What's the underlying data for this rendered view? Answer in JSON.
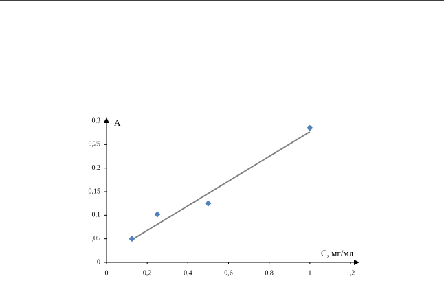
{
  "chart_data": {
    "type": "scatter",
    "x_label": "С, мг/мл",
    "y_label": "А",
    "series": [
      {
        "color": "#4f81bd",
        "x": [
          0.125,
          0.25,
          0.5,
          1
        ],
        "values": [
          0.05,
          0.102,
          0.125,
          0.285
        ]
      }
    ],
    "trendline": {
      "color": "#808080",
      "x": [
        0.125,
        1
      ],
      "values": [
        0.048,
        0.277
      ]
    },
    "xlim": [
      0,
      1.2
    ],
    "ylim": [
      0,
      0.3
    ],
    "xticks": [
      0,
      {
        "value": 0.2,
        "label": "0,2"
      },
      {
        "value": 0.4,
        "label": "0,4"
      },
      {
        "value": 0.6,
        "label": "0,6"
      },
      {
        "value": 0.8,
        "label": "0,8"
      },
      1,
      {
        "value": 1.2,
        "label": "1,2"
      }
    ],
    "yticks": [
      0,
      {
        "value": 0.05,
        "label": "0,05"
      },
      {
        "value": 0.1,
        "label": "0,1"
      },
      {
        "value": 0.15,
        "label": "0,15"
      },
      {
        "value": 0.2,
        "label": "0,2"
      },
      {
        "value": 0.25,
        "label": "0,25"
      },
      {
        "value": 0.3,
        "label": "0,3"
      }
    ]
  }
}
